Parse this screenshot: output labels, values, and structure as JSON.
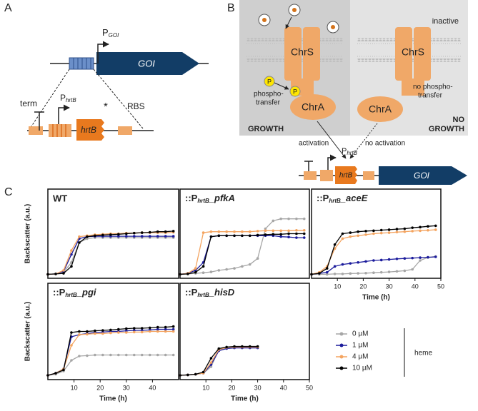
{
  "panel_a": {
    "label": "A",
    "p_goi": {
      "main": "P",
      "sub": "GOI"
    },
    "goi": "GOI",
    "term": "term",
    "p_hrtb": {
      "main": "P",
      "sub": "hrtB"
    },
    "hrtb": "hrtB",
    "star": "*",
    "rbs": "RBS"
  },
  "panel_b": {
    "label": "B",
    "chrs_left": "ChrS",
    "chrs_right": "ChrS",
    "inactive": "inactive",
    "phospho": [
      "phospho-",
      "transfer"
    ],
    "p_labels": [
      "P",
      "P"
    ],
    "chra_left": "ChrA",
    "chra_right": "ChrA",
    "no_phospho": [
      "no phospho-",
      "transfer"
    ],
    "growth": "GROWTH",
    "no_growth": [
      "NO",
      "GROWTH"
    ],
    "activation": "activation",
    "no_activation": "no activation",
    "p_hrtb": {
      "main": "P",
      "sub": "hrtB"
    },
    "hrtb": "hrtB",
    "goi": "GOI"
  },
  "panel_c": {
    "label": "C",
    "legend": {
      "title": "heme",
      "entries": [
        {
          "name": "0 µM",
          "color": "#a6a6a6"
        },
        {
          "name": "1 µM",
          "color": "#1c1c9c"
        },
        {
          "name": "4 µM",
          "color": "#f4a460"
        },
        {
          "name": "10 µM",
          "color": "#000000"
        }
      ]
    }
  },
  "chart_data": [
    {
      "type": "line",
      "title": "WT",
      "y_label": "Backscatter (a.u.)",
      "x": [
        0,
        3,
        6,
        9,
        12,
        15,
        18,
        21,
        24,
        27,
        30,
        33,
        36,
        39,
        42,
        45,
        48
      ],
      "xlim": [
        0,
        50
      ],
      "ylim": [
        0,
        450
      ],
      "series": [
        {
          "color": "#a6a6a6",
          "values": [
            20,
            22,
            30,
            80,
            180,
            200,
            205,
            205,
            205,
            205,
            205,
            205,
            205,
            205,
            205,
            205,
            205
          ]
        },
        {
          "color": "#1c1c9c",
          "values": [
            20,
            22,
            35,
            120,
            200,
            210,
            212,
            212,
            212,
            212,
            212,
            212,
            212,
            212,
            212,
            212,
            212
          ]
        },
        {
          "color": "#f4a460",
          "values": [
            20,
            22,
            40,
            140,
            210,
            215,
            220,
            222,
            225,
            225,
            228,
            228,
            230,
            230,
            230,
            230,
            232
          ]
        },
        {
          "color": "#000000",
          "values": [
            20,
            22,
            25,
            60,
            180,
            210,
            215,
            218,
            220,
            222,
            225,
            228,
            230,
            232,
            235,
            235,
            238
          ]
        }
      ]
    },
    {
      "type": "line",
      "title": [
        {
          "text": "::P"
        },
        {
          "text": "hrtB",
          "sub": true
        },
        {
          "text": "_pfkA"
        }
      ],
      "x": [
        0,
        3,
        6,
        9,
        12,
        15,
        18,
        21,
        24,
        27,
        30,
        33,
        36,
        39,
        42,
        45,
        48
      ],
      "xlim": [
        0,
        50
      ],
      "ylim": [
        0,
        450
      ],
      "series": [
        {
          "color": "#a6a6a6",
          "values": [
            20,
            22,
            25,
            28,
            32,
            40,
            45,
            50,
            60,
            70,
            100,
            250,
            290,
            300,
            300,
            300,
            300
          ]
        },
        {
          "color": "#1c1c9c",
          "values": [
            20,
            25,
            40,
            80,
            210,
            215,
            215,
            215,
            215,
            215,
            215,
            215,
            215,
            210,
            208,
            205,
            205
          ]
        },
        {
          "color": "#f4a460",
          "values": [
            20,
            25,
            50,
            230,
            235,
            235,
            235,
            235,
            235,
            235,
            238,
            240,
            240,
            240,
            240,
            242,
            242
          ]
        },
        {
          "color": "#000000",
          "values": [
            20,
            22,
            30,
            60,
            210,
            215,
            215,
            215,
            215,
            215,
            218,
            220,
            222,
            222,
            225,
            225,
            225
          ]
        }
      ]
    },
    {
      "type": "line",
      "title": [
        {
          "text": "::P"
        },
        {
          "text": "hrtB",
          "sub": true
        },
        {
          "text": "_aceE"
        }
      ],
      "x_label": "Time (h)",
      "x": [
        0,
        3,
        6,
        9,
        12,
        15,
        18,
        21,
        24,
        27,
        30,
        33,
        36,
        39,
        42,
        45,
        48
      ],
      "xlim": [
        0,
        50
      ],
      "xticks": [
        10,
        20,
        30,
        40,
        50
      ],
      "ylim": [
        0,
        450
      ],
      "series": [
        {
          "color": "#a6a6a6",
          "values": [
            20,
            20,
            20,
            22,
            22,
            24,
            25,
            26,
            28,
            30,
            32,
            35,
            38,
            45,
            90,
            105,
            110
          ]
        },
        {
          "color": "#1c1c9c",
          "values": [
            20,
            25,
            30,
            60,
            70,
            75,
            80,
            85,
            90,
            92,
            95,
            98,
            100,
            102,
            104,
            106,
            108
          ]
        },
        {
          "color": "#f4a460",
          "values": [
            20,
            30,
            60,
            150,
            200,
            210,
            215,
            220,
            225,
            228,
            230,
            233,
            235,
            238,
            240,
            242,
            245
          ]
        },
        {
          "color": "#000000",
          "values": [
            20,
            25,
            50,
            170,
            225,
            230,
            235,
            238,
            240,
            243,
            245,
            248,
            250,
            255,
            258,
            262,
            265
          ]
        }
      ]
    },
    {
      "type": "line",
      "title": [
        {
          "text": "::P"
        },
        {
          "text": "hrtB",
          "sub": true
        },
        {
          "text": "_pgi"
        }
      ],
      "y_label": "Backscatter (a.u.)",
      "x_label": "Time (h)",
      "x": [
        0,
        3,
        6,
        9,
        12,
        15,
        18,
        21,
        24,
        27,
        30,
        33,
        36,
        39,
        42,
        45,
        48
      ],
      "xlim": [
        0,
        50
      ],
      "xticks": [
        10,
        20,
        30,
        40
      ],
      "ylim": [
        0,
        450
      ],
      "series": [
        {
          "color": "#a6a6a6",
          "values": [
            20,
            25,
            40,
            90,
            110,
            112,
            115,
            115,
            115,
            115,
            115,
            115,
            115,
            115,
            115,
            115,
            115
          ]
        },
        {
          "color": "#1c1c9c",
          "values": [
            20,
            30,
            50,
            200,
            210,
            215,
            220,
            222,
            225,
            225,
            228,
            230,
            230,
            232,
            235,
            235,
            235
          ]
        },
        {
          "color": "#f4a460",
          "values": [
            20,
            30,
            50,
            160,
            210,
            212,
            215,
            215,
            218,
            220,
            220,
            222,
            222,
            225,
            225,
            225,
            225
          ]
        },
        {
          "color": "#000000",
          "values": [
            20,
            30,
            45,
            220,
            225,
            225,
            228,
            230,
            232,
            235,
            238,
            240,
            240,
            242,
            245,
            245,
            248
          ]
        }
      ]
    },
    {
      "type": "line",
      "title": [
        {
          "text": "::P"
        },
        {
          "text": "hrtB",
          "sub": true
        },
        {
          "text": "_hisD"
        }
      ],
      "x_label": "Time (h)",
      "x": [
        0,
        3,
        6,
        9,
        12,
        15,
        18,
        21,
        24,
        27,
        30
      ],
      "xlim": [
        0,
        50
      ],
      "xticks": [
        10,
        20,
        30,
        40,
        50
      ],
      "ylim": [
        0,
        450
      ],
      "series": [
        {
          "color": "#a6a6a6",
          "values": [
            20,
            22,
            25,
            30,
            60,
            140,
            150,
            152,
            152,
            152,
            152
          ]
        },
        {
          "color": "#1c1c9c",
          "values": [
            20,
            22,
            25,
            30,
            70,
            135,
            145,
            148,
            148,
            148,
            148
          ]
        },
        {
          "color": "#f4a460",
          "values": [
            20,
            22,
            25,
            30,
            80,
            140,
            150,
            152,
            152,
            152,
            152
          ]
        },
        {
          "color": "#000000",
          "values": [
            20,
            22,
            25,
            35,
            100,
            145,
            152,
            155,
            155,
            155,
            155
          ]
        }
      ]
    }
  ]
}
